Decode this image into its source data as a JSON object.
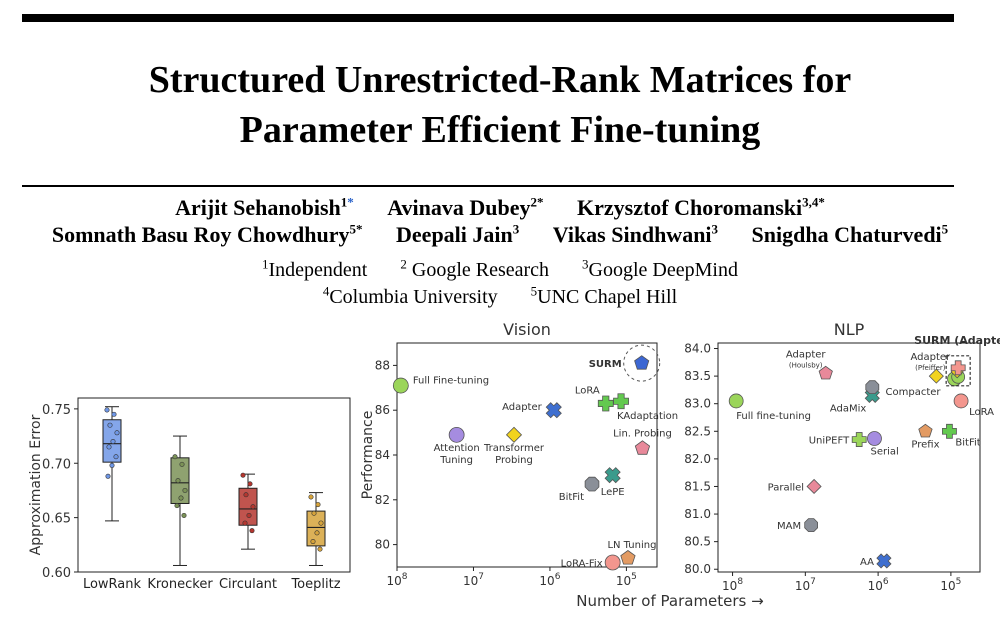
{
  "title_line1": "Structured Unrestricted-Rank Matrices for",
  "title_line2": "Parameter Efficient Fine-tuning",
  "authors_row1": [
    {
      "name": "Arijit Sehanobish",
      "sup": "1",
      "mark": "*",
      "mark_color": "#2a62c9"
    },
    {
      "name": "Avinava Dubey",
      "sup": "2*"
    },
    {
      "name": "Krzysztof Choromanski",
      "sup": "3,4*"
    }
  ],
  "authors_row2": [
    {
      "name": "Somnath Basu Roy Chowdhury",
      "sup": "5*"
    },
    {
      "name": "Deepali Jain",
      "sup": "3"
    },
    {
      "name": "Vikas Sindhwani",
      "sup": "3"
    },
    {
      "name": "Snigdha Chaturvedi",
      "sup": "5"
    }
  ],
  "affiliations_row1": [
    {
      "sup": "1",
      "name": "Independent"
    },
    {
      "sup": "2",
      "name": " Google Research"
    },
    {
      "sup": "3",
      "name": "Google DeepMind"
    }
  ],
  "affiliations_row2": [
    {
      "sup": "4",
      "name": "Columbia University"
    },
    {
      "sup": "5",
      "name": "UNC Chapel Hill"
    }
  ],
  "chart_data": [
    {
      "type": "box",
      "ylabel": "Approximation Error",
      "ylim": [
        0.6,
        0.76
      ],
      "yticks": [
        "0.60",
        "0.65",
        "0.70",
        "0.75"
      ],
      "categories": [
        "LowRank",
        "Kronecker",
        "Circulant",
        "Toeplitz"
      ],
      "colors": [
        "#6f97e6",
        "#7b9257",
        "#b5362f",
        "#d6a33b"
      ],
      "boxes": [
        {
          "min": 0.647,
          "q1": 0.701,
          "median": 0.718,
          "q3": 0.74,
          "max": 0.752,
          "points": [
            0.749,
            0.745,
            0.735,
            0.728,
            0.72,
            0.715,
            0.706,
            0.698,
            0.688
          ]
        },
        {
          "min": 0.606,
          "q1": 0.663,
          "median": 0.682,
          "q3": 0.705,
          "max": 0.725,
          "points": [
            0.706,
            0.699,
            0.684,
            0.675,
            0.668,
            0.661,
            0.652
          ]
        },
        {
          "min": 0.621,
          "q1": 0.643,
          "median": 0.658,
          "q3": 0.677,
          "max": 0.69,
          "points": [
            0.689,
            0.681,
            0.671,
            0.66,
            0.652,
            0.645,
            0.638
          ]
        },
        {
          "min": 0.606,
          "q1": 0.624,
          "median": 0.641,
          "q3": 0.656,
          "max": 0.673,
          "points": [
            0.669,
            0.662,
            0.654,
            0.645,
            0.636,
            0.628,
            0.621
          ]
        }
      ]
    },
    {
      "type": "scatter",
      "title": "Vision",
      "ylabel": "Performance",
      "xlabel": "Number of Parameters →",
      "ylim": [
        79,
        89
      ],
      "yticks": [
        "80",
        "82",
        "84",
        "86",
        "88"
      ],
      "xticks": [
        {
          "base": "10",
          "exp": "8"
        },
        {
          "base": "10",
          "exp": "7"
        },
        {
          "base": "10",
          "exp": "6"
        },
        {
          "base": "10",
          "exp": "5"
        }
      ],
      "xlim_exp": [
        8,
        4.6
      ],
      "points": [
        {
          "label": "Full Fine-tuning",
          "x_exp": 7.95,
          "y": 87.1,
          "shape": "circle",
          "color": "#9bd55a"
        },
        {
          "label": "Attention\nTuning",
          "x_exp": 7.22,
          "y": 84.9,
          "shape": "circle",
          "color": "#a58ce0"
        },
        {
          "label": "Adapter",
          "x_exp": 5.95,
          "y": 86.0,
          "shape": "x",
          "color": "#3f6fd0"
        },
        {
          "label": "Transformer\nProbing",
          "x_exp": 6.47,
          "y": 84.9,
          "shape": "diamond",
          "color": "#f2d31e"
        },
        {
          "label": "LoRA",
          "x_exp": 5.27,
          "y": 86.3,
          "shape": "plus",
          "color": "#63c94f"
        },
        {
          "label": "KAdaptation",
          "x_exp": 5.07,
          "y": 86.4,
          "shape": "plus",
          "color": "#63c94f"
        },
        {
          "label": "Lin. Probing",
          "x_exp": 4.79,
          "y": 84.3,
          "shape": "pentagon",
          "color": "#e8899a"
        },
        {
          "label": "BitFit",
          "x_exp": 5.45,
          "y": 82.7,
          "shape": "octagon",
          "color": "#8a8f98"
        },
        {
          "label": "LePE",
          "x_exp": 5.18,
          "y": 83.1,
          "shape": "x",
          "color": "#3a9b8c"
        },
        {
          "label": "LN Tuning",
          "x_exp": 4.98,
          "y": 79.4,
          "shape": "pentagon",
          "color": "#e39b63"
        },
        {
          "label": "LoRA-Fix",
          "x_exp": 5.18,
          "y": 79.2,
          "shape": "circle",
          "color": "#f3968e"
        },
        {
          "label": "SURM",
          "x_exp": 4.8,
          "y": 88.1,
          "shape": "pentagon",
          "color": "#3c67d3"
        }
      ]
    },
    {
      "type": "scatter",
      "title": "NLP",
      "ylim": [
        79.95,
        84.1
      ],
      "yticks": [
        "80.0",
        "80.5",
        "81.0",
        "81.5",
        "82.0",
        "82.5",
        "83.0",
        "83.5",
        "84.0"
      ],
      "xticks": [
        {
          "base": "10",
          "exp": "8"
        },
        {
          "base": "10",
          "exp": "7"
        },
        {
          "base": "10",
          "exp": "6"
        },
        {
          "base": "10",
          "exp": "5"
        }
      ],
      "xlim_exp": [
        8.2,
        4.6
      ],
      "points": [
        {
          "label": "Full fine-tuning",
          "x_exp": 7.95,
          "y": 83.05,
          "shape": "circle",
          "color": "#9bd55a"
        },
        {
          "label": "Adapter",
          "sub": "(Houlsby)",
          "x_exp": 6.72,
          "y": 83.55,
          "shape": "pentagon",
          "color": "#e8899a"
        },
        {
          "label": "AdaMix",
          "x_exp": 6.08,
          "y": 83.15,
          "shape": "x",
          "color": "#3a9b8c"
        },
        {
          "label": "",
          "x_exp": 6.08,
          "y": 83.3,
          "shape": "octagon",
          "color": "#8a8f98"
        },
        {
          "label": "Adapter",
          "sub": "(Pfeiffer)",
          "x_exp": 5.2,
          "y": 83.5,
          "shape": "diamond",
          "color": "#f2d31e"
        },
        {
          "label": "Compacter",
          "x_exp": 4.95,
          "y": 83.45,
          "shape": "circle",
          "color": "#9bd55a"
        },
        {
          "label": "LoRA",
          "x_exp": 4.86,
          "y": 83.05,
          "shape": "circle",
          "color": "#f3968e"
        },
        {
          "label": "UniPEFT",
          "x_exp": 6.26,
          "y": 82.35,
          "shape": "plus",
          "color": "#9bd55a"
        },
        {
          "label": "Serial",
          "x_exp": 6.05,
          "y": 82.37,
          "shape": "circle",
          "color": "#a58ce0"
        },
        {
          "label": "Prefix",
          "x_exp": 5.35,
          "y": 82.5,
          "shape": "pentagon",
          "color": "#e39b63"
        },
        {
          "label": "BitFit",
          "x_exp": 5.02,
          "y": 82.5,
          "shape": "plus",
          "color": "#63c94f"
        },
        {
          "label": "Parallel",
          "x_exp": 6.88,
          "y": 81.5,
          "shape": "diamond",
          "color": "#e8899a"
        },
        {
          "label": "MAM",
          "x_exp": 6.92,
          "y": 80.8,
          "shape": "octagon",
          "color": "#8a8f98"
        },
        {
          "label": "AA",
          "x_exp": 5.92,
          "y": 80.15,
          "shape": "x",
          "color": "#3f6fd0"
        },
        {
          "label": "SURM (Adapter)",
          "x_exp": 4.9,
          "y": 83.65,
          "shape": "plus",
          "color": "#f3968e"
        }
      ]
    }
  ]
}
